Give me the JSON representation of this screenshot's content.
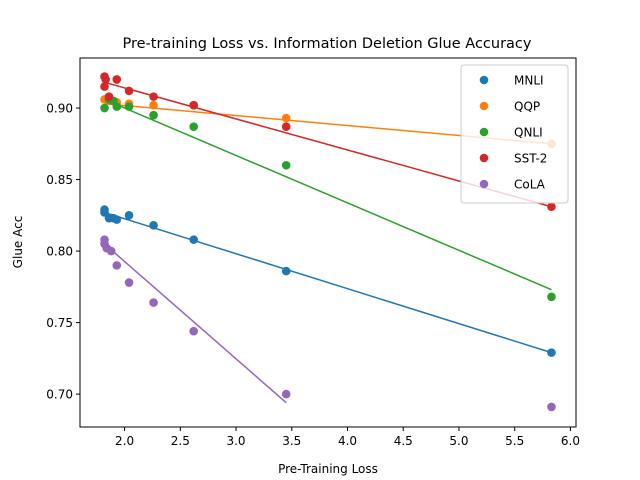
{
  "chart_data": {
    "type": "scatter",
    "title": "Pre-training Loss vs. Information Deletion Glue Accuracy",
    "xlabel": "Pre-Training Loss",
    "ylabel": "Glue Acc",
    "xlim": [
      1.6,
      6.05
    ],
    "ylim": [
      0.677,
      0.935
    ],
    "xticks": [
      2.0,
      2.5,
      3.0,
      3.5,
      4.0,
      4.5,
      5.0,
      5.5,
      6.0
    ],
    "xtick_labels": [
      "2.0",
      "2.5",
      "3.0",
      "3.5",
      "4.0",
      "4.5",
      "5.0",
      "5.5",
      "6.0"
    ],
    "yticks": [
      0.7,
      0.75,
      0.8,
      0.85,
      0.9
    ],
    "ytick_labels": [
      "0.70",
      "0.75",
      "0.80",
      "0.85",
      "0.90"
    ],
    "legend_position": "top-right",
    "series": [
      {
        "name": "MNLI",
        "color": "#1f77b4",
        "points": [
          [
            1.82,
            0.829
          ],
          [
            1.82,
            0.827
          ],
          [
            1.86,
            0.823
          ],
          [
            1.9,
            0.823
          ],
          [
            1.93,
            0.822
          ],
          [
            2.04,
            0.825
          ],
          [
            2.26,
            0.818
          ],
          [
            2.62,
            0.808
          ],
          [
            3.45,
            0.786
          ],
          [
            5.83,
            0.729
          ]
        ],
        "fit": [
          [
            1.82,
            0.827
          ],
          [
            5.83,
            0.729
          ]
        ]
      },
      {
        "name": "QQP",
        "color": "#ff7f0e",
        "points": [
          [
            1.82,
            0.906
          ],
          [
            1.86,
            0.905
          ],
          [
            1.9,
            0.905
          ],
          [
            1.93,
            0.904
          ],
          [
            2.04,
            0.903
          ],
          [
            2.26,
            0.902
          ],
          [
            2.62,
            0.902
          ],
          [
            3.45,
            0.893
          ],
          [
            5.83,
            0.875
          ]
        ],
        "fit": [
          [
            1.82,
            0.903
          ],
          [
            5.83,
            0.875
          ]
        ]
      },
      {
        "name": "QNLI",
        "color": "#2ca02c",
        "points": [
          [
            1.82,
            0.9
          ],
          [
            1.86,
            0.906
          ],
          [
            1.9,
            0.905
          ],
          [
            1.93,
            0.901
          ],
          [
            2.04,
            0.901
          ],
          [
            2.26,
            0.895
          ],
          [
            2.62,
            0.887
          ],
          [
            3.45,
            0.86
          ],
          [
            5.83,
            0.768
          ]
        ],
        "fit": [
          [
            1.82,
            0.906
          ],
          [
            5.83,
            0.773
          ]
        ]
      },
      {
        "name": "SST-2",
        "color": "#d62728",
        "points": [
          [
            1.82,
            0.922
          ],
          [
            1.83,
            0.92
          ],
          [
            1.82,
            0.915
          ],
          [
            1.86,
            0.908
          ],
          [
            1.93,
            0.92
          ],
          [
            2.04,
            0.912
          ],
          [
            2.26,
            0.908
          ],
          [
            2.62,
            0.902
          ],
          [
            3.45,
            0.887
          ],
          [
            5.83,
            0.831
          ]
        ],
        "fit": [
          [
            1.82,
            0.918
          ],
          [
            5.83,
            0.831
          ]
        ]
      },
      {
        "name": "CoLA",
        "color": "#9467bd",
        "points": [
          [
            1.82,
            0.808
          ],
          [
            1.82,
            0.805
          ],
          [
            1.84,
            0.802
          ],
          [
            1.88,
            0.8
          ],
          [
            1.93,
            0.79
          ],
          [
            2.04,
            0.778
          ],
          [
            2.26,
            0.764
          ],
          [
            2.62,
            0.744
          ],
          [
            3.45,
            0.7
          ],
          [
            5.83,
            0.691
          ]
        ],
        "fit": [
          [
            1.82,
            0.805
          ],
          [
            3.45,
            0.694
          ]
        ]
      }
    ]
  }
}
